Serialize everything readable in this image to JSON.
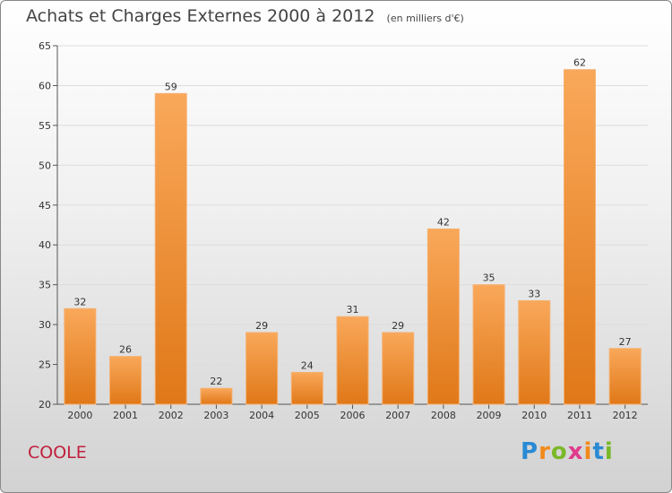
{
  "title": "Achats et Charges Externes 2000 à 2012",
  "unit": "(en milliers d'€)",
  "commune": "COOLE",
  "logo": {
    "letters": [
      "P",
      "r",
      "o",
      "x",
      "i",
      "t",
      "i"
    ],
    "colors": [
      "#2a8ad4",
      "#f28a1a",
      "#7ab829",
      "#e03a8c",
      "#f28a1a",
      "#2a8ad4",
      "#7ab829"
    ]
  },
  "colors": {
    "bar_light": "#f9a85a",
    "bar_dark": "#e07818",
    "title": "#444444",
    "commune": "#c0203f"
  },
  "chart_data": {
    "type": "bar",
    "categories": [
      "2000",
      "2001",
      "2002",
      "2003",
      "2004",
      "2005",
      "2006",
      "2007",
      "2008",
      "2009",
      "2010",
      "2011",
      "2012"
    ],
    "values": [
      32,
      26,
      59,
      22,
      29,
      24,
      31,
      29,
      42,
      35,
      33,
      62,
      27
    ],
    "title": "Achats et Charges Externes 2000 à 2012",
    "xlabel": "",
    "ylabel": "",
    "ylim": [
      20,
      65
    ],
    "yticks": [
      20,
      25,
      30,
      35,
      40,
      45,
      50,
      55,
      60,
      65
    ],
    "grid": true,
    "legend": "none"
  }
}
